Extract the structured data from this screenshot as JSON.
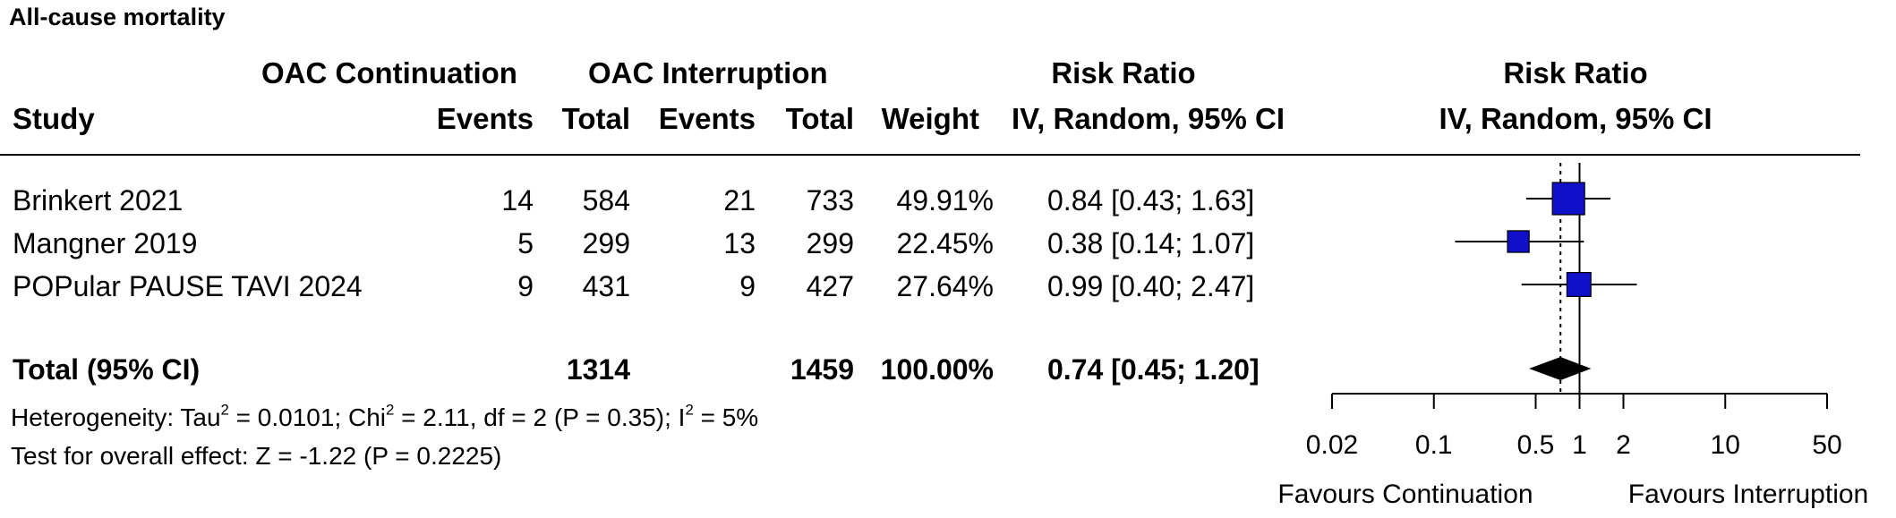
{
  "title": "All-cause mortality",
  "header": {
    "group_continuation": "OAC Continuation",
    "group_interruption": "OAC Interruption",
    "study": "Study",
    "events": "Events",
    "total": "Total",
    "weight": "Weight",
    "rr_title": "Risk Ratio",
    "rr_method": "IV, Random, 95% CI",
    "plot_title": "Risk Ratio",
    "plot_method": "IV, Random, 95% CI"
  },
  "studies": [
    {
      "name": "Brinkert 2021",
      "cont_events": "14",
      "cont_total": "584",
      "int_events": "21",
      "int_total": "733",
      "weight": "49.91%",
      "ci_text": "0.84 [0.43; 1.63]"
    },
    {
      "name": "Mangner 2019",
      "cont_events": "5",
      "cont_total": "299",
      "int_events": "13",
      "int_total": "299",
      "weight": "22.45%",
      "ci_text": "0.38 [0.14; 1.07]"
    },
    {
      "name": "POPular PAUSE TAVI 2024",
      "cont_events": "9",
      "cont_total": "431",
      "int_events": "9",
      "int_total": "427",
      "weight": "27.64%",
      "ci_text": "0.99 [0.40; 2.47]"
    }
  ],
  "total": {
    "name": "Total (95% CI)",
    "cont_total": "1314",
    "int_total": "1459",
    "weight": "100.00%",
    "ci_text": "0.74 [0.45; 1.20]"
  },
  "heterogeneity": {
    "tau2": "0.0101",
    "chi2": "2.11",
    "df_p": "df = 2 (P = 0.35)",
    "i2": "5%"
  },
  "overall_effect": "Test for overall effect: Z = -1.22 (P = 0.2225)",
  "favours_left": "Favours Continuation",
  "favours_right": "Favours Interruption",
  "colors": {
    "square": "#1010c8",
    "diamond": "#000000"
  },
  "chart_data": {
    "type": "forest",
    "scale": "log",
    "xlim": [
      0.02,
      50
    ],
    "ticks": [
      0.02,
      0.1,
      0.5,
      1,
      2,
      10,
      50
    ],
    "tick_labels": [
      "0.02",
      "0.1",
      "0.5",
      "1",
      "2",
      "10",
      "50"
    ],
    "reference_line": 1,
    "pooled_line": 0.74,
    "studies": [
      {
        "name": "Brinkert 2021",
        "rr": 0.84,
        "lower": 0.43,
        "upper": 1.63,
        "weight": 49.91
      },
      {
        "name": "Mangner 2019",
        "rr": 0.38,
        "lower": 0.14,
        "upper": 1.07,
        "weight": 22.45
      },
      {
        "name": "POPular PAUSE TAVI 2024",
        "rr": 0.99,
        "lower": 0.4,
        "upper": 2.47,
        "weight": 27.64
      }
    ],
    "pooled": {
      "rr": 0.74,
      "lower": 0.45,
      "upper": 1.2
    }
  }
}
